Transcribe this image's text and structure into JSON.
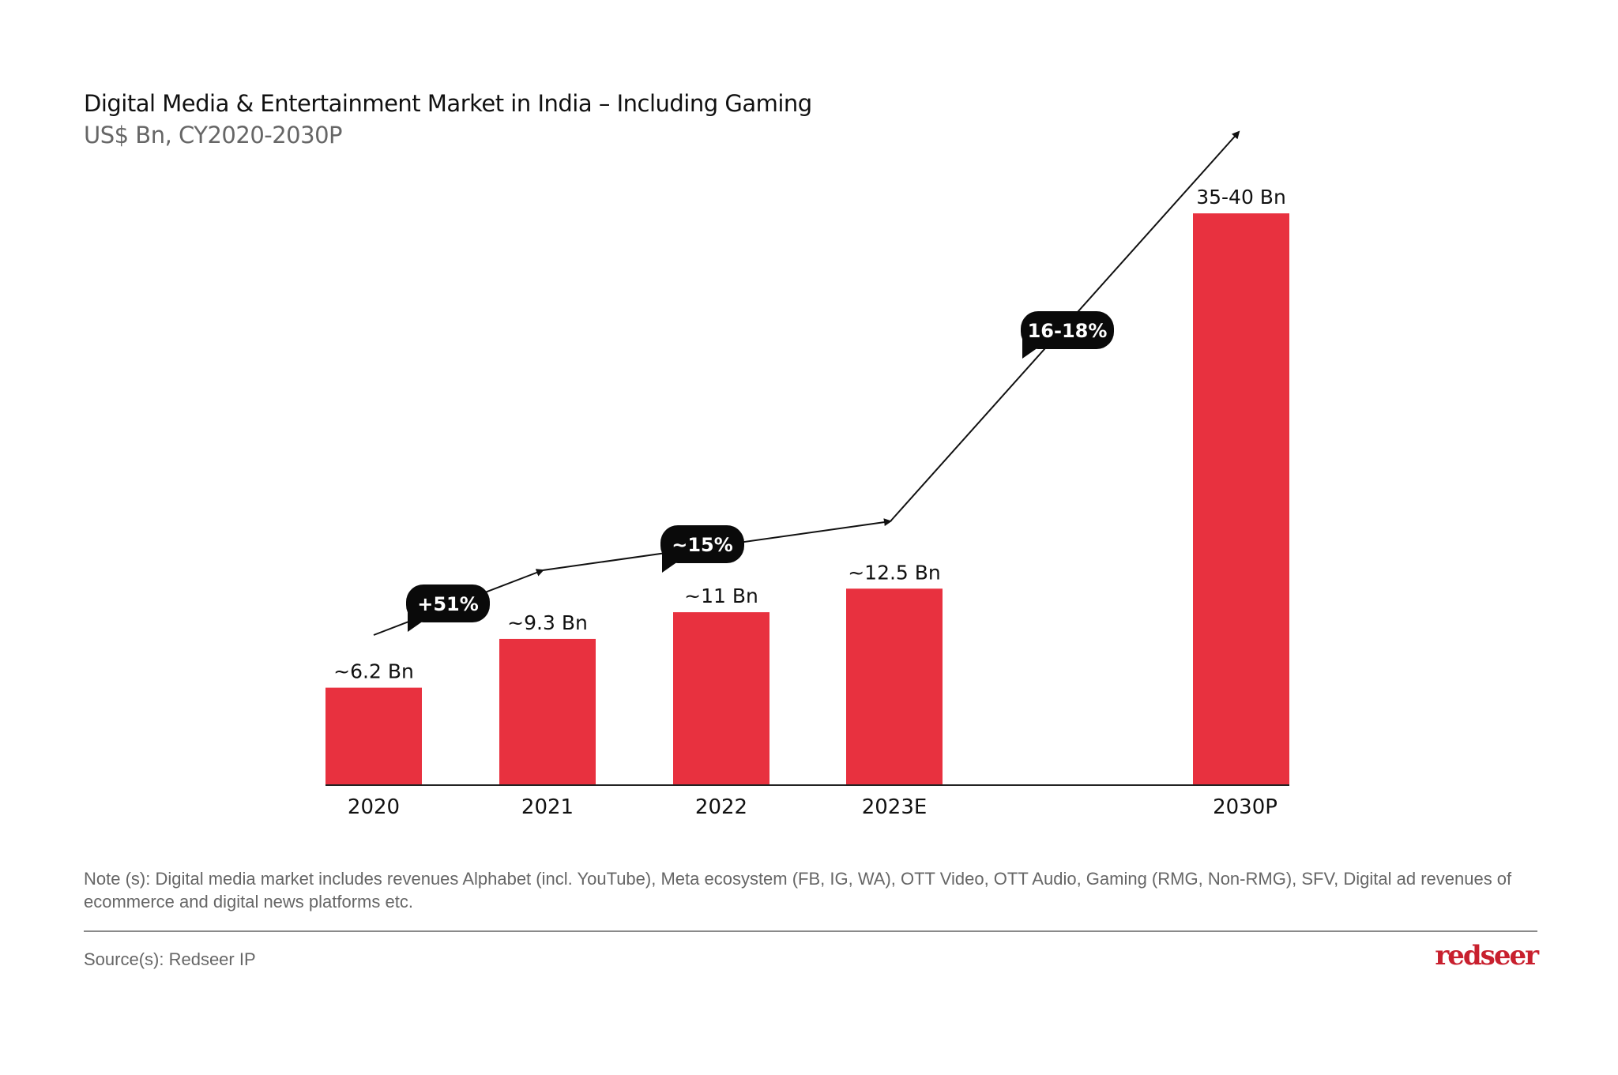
{
  "chart_data": {
    "type": "bar",
    "title": "Digital Media & Entertainment Market in India – Including Gaming",
    "subtitle": "US$ Bn, CY2020-2030P",
    "categories": [
      "2020",
      "2021",
      "2022",
      "2023E",
      "2030P"
    ],
    "values": [
      6.2,
      9.3,
      11,
      12.5,
      37.5
    ],
    "value_ranges": [
      null,
      null,
      null,
      null,
      [
        35,
        40
      ]
    ],
    "data_labels": [
      "~6.2 Bn",
      "~9.3 Bn",
      "~11 Bn",
      "~12.5 Bn",
      "35-40 Bn"
    ],
    "growth_annotations": [
      {
        "label": "+51%",
        "from": "2020",
        "to": "2021"
      },
      {
        "label": "~15%",
        "from": "2021",
        "to": "2023E"
      },
      {
        "label": "16-18%",
        "from": "2023E",
        "to": "2030P"
      }
    ],
    "xlabel": "",
    "ylabel": "",
    "grid": false,
    "bar_color": "#E8313F"
  },
  "footer": {
    "note": "Note (s): Digital media market includes revenues Alphabet (incl. YouTube), Meta ecosystem (FB, IG, WA), OTT Video, OTT Audio, Gaming (RMG, Non-RMG), SFV, Digital ad revenues of ecommerce and digital news platforms etc.",
    "source": "Source(s): Redseer IP",
    "logo": "redseer",
    "logo_color": "#C8202E"
  }
}
